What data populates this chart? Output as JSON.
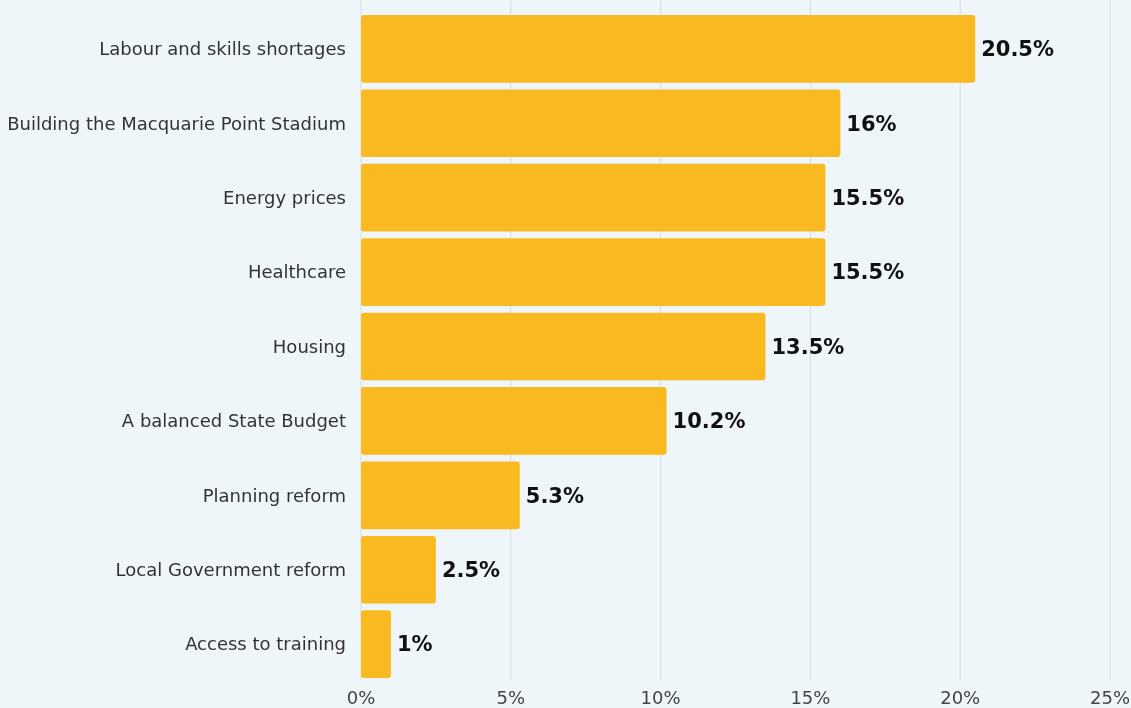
{
  "chart_data": {
    "type": "bar",
    "orientation": "horizontal",
    "categories": [
      "Labour and skills shortages",
      "Building the Macquarie Point Stadium",
      "Energy prices",
      "Healthcare",
      "Housing",
      "A balanced State Budget",
      "Planning reform",
      "Local Government reform",
      "Access to training"
    ],
    "values": [
      20.5,
      16,
      15.5,
      15.5,
      13.5,
      10.2,
      5.3,
      2.5,
      1
    ],
    "value_labels": [
      "20.5%",
      "16%",
      "15.5%",
      "15.5%",
      "13.5%",
      "10.2%",
      "5.3%",
      "2.5%",
      "1%"
    ],
    "color": "#f9b921",
    "xlim": [
      0,
      25
    ],
    "xticks": [
      {
        "value": 0,
        "label": "0%"
      },
      {
        "value": 5,
        "label": "5%"
      },
      {
        "value": 10,
        "label": "10%"
      },
      {
        "value": 15,
        "label": "15%"
      },
      {
        "value": 20,
        "label": "20%"
      },
      {
        "value": 25,
        "label": "25%"
      }
    ],
    "grid": "x"
  }
}
